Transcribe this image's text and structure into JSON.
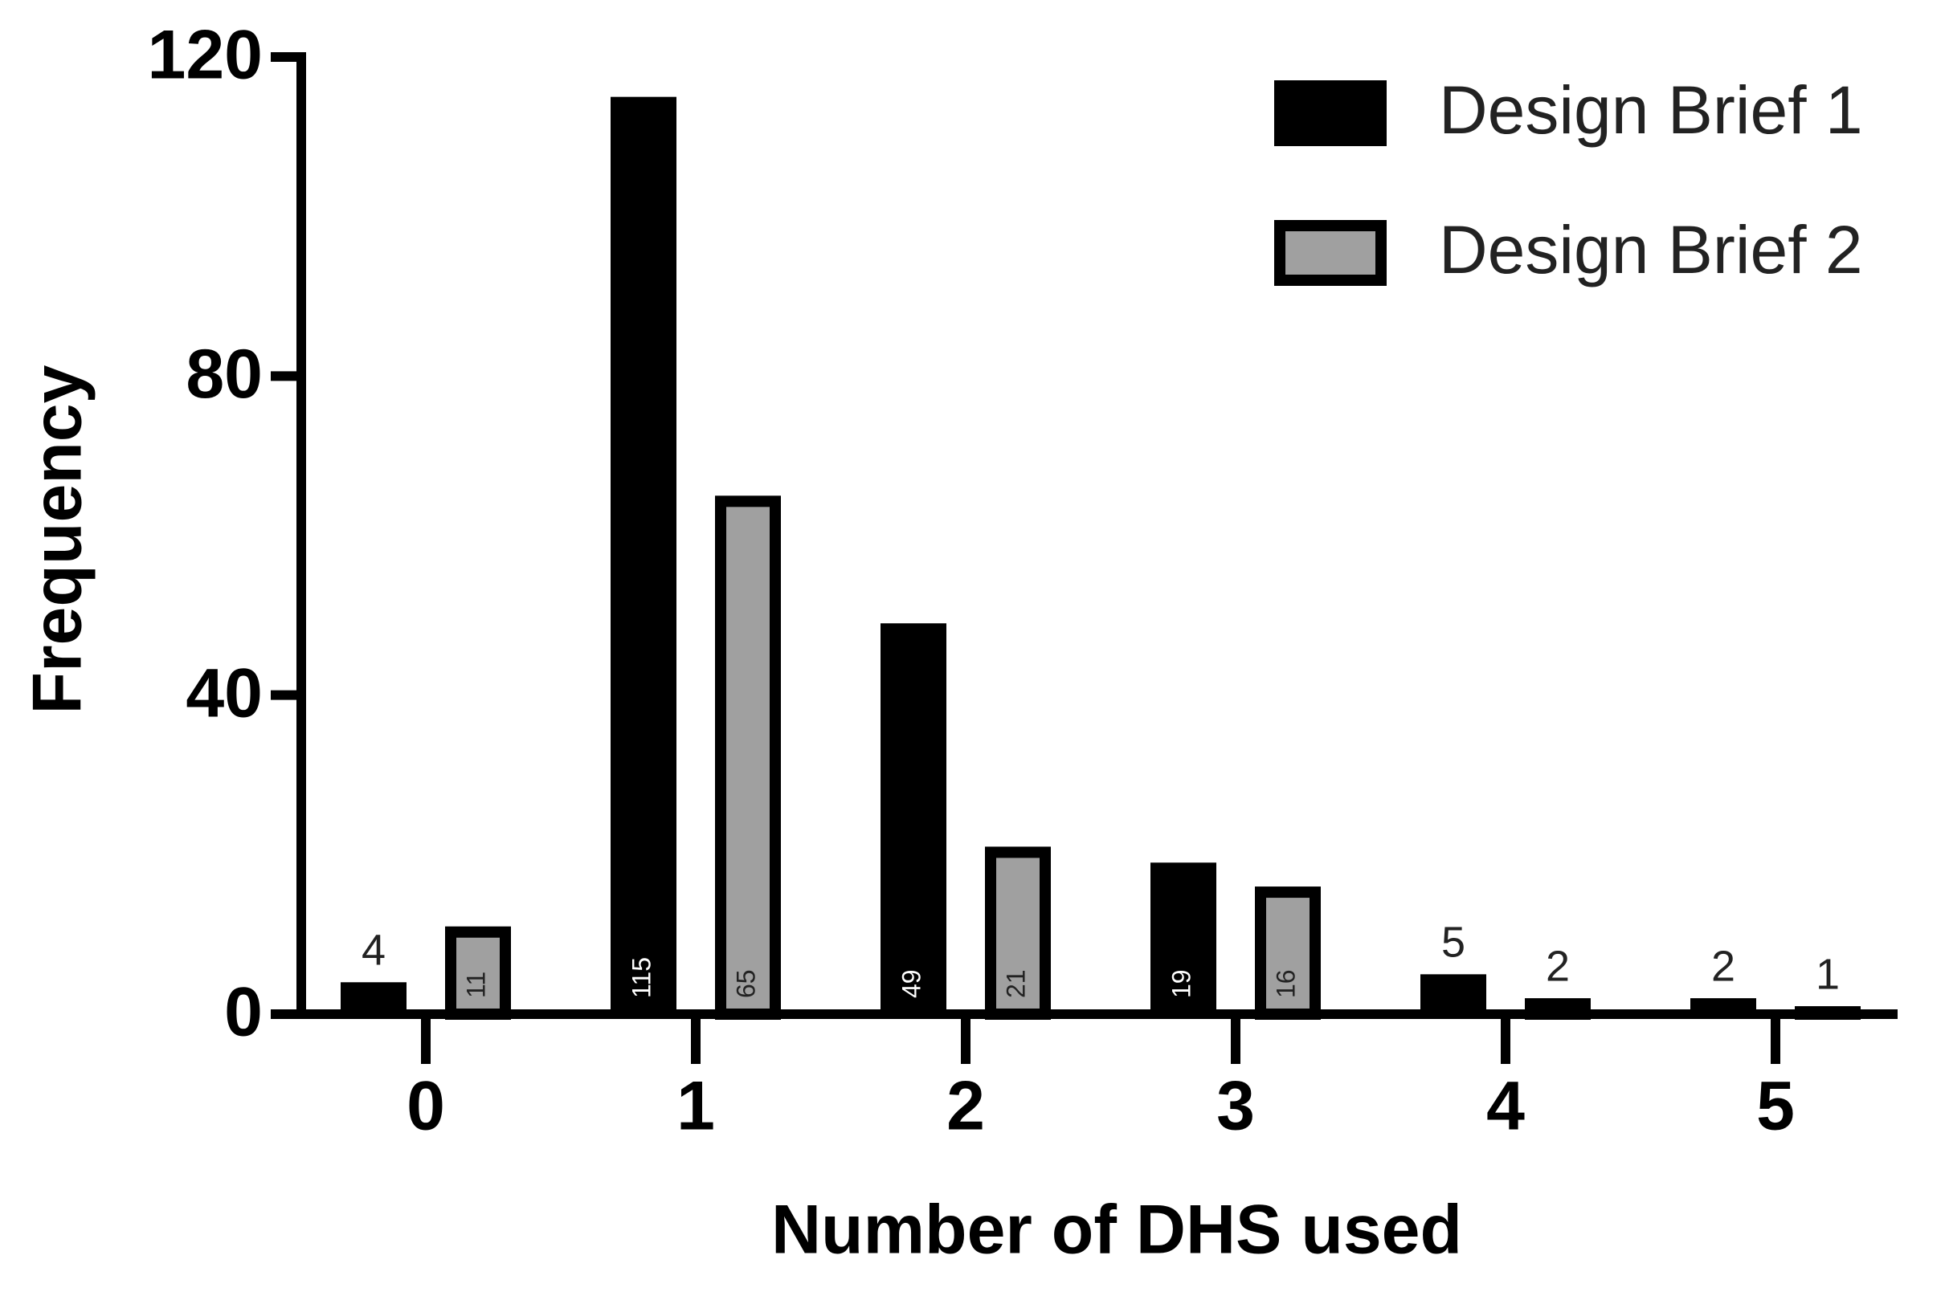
{
  "chart_data": {
    "type": "bar",
    "x_label": "Number of DHS used",
    "y_label": "Frequency",
    "categories": [
      "0",
      "1",
      "2",
      "3",
      "4",
      "5"
    ],
    "series": [
      {
        "name": "Design Brief 1",
        "color": "#000000",
        "values": [
          4,
          115,
          49,
          19,
          5,
          2
        ]
      },
      {
        "name": "Design Brief 2",
        "color": "#a0a0a0",
        "values": [
          11,
          65,
          21,
          16,
          2,
          1
        ]
      }
    ],
    "ylim": [
      0,
      120
    ],
    "yticks": [
      0,
      40,
      80,
      120
    ],
    "legend": "upper right"
  }
}
